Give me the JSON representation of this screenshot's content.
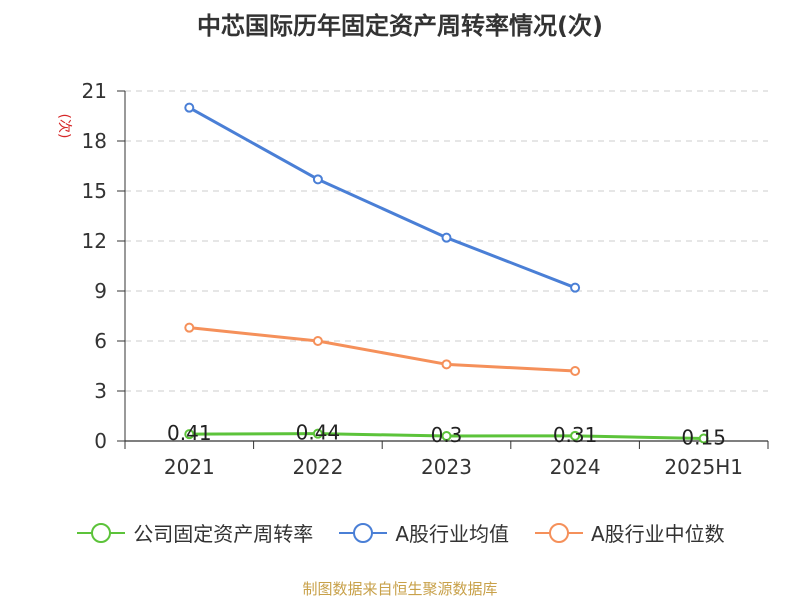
{
  "title": "中芯国际历年固定资产周转率情况(次)",
  "source": "制图数据来自恒生聚源数据库",
  "chart_data": {
    "type": "line",
    "title": "中芯国际历年固定资产周转率情况(次)",
    "ylabel": "(次)",
    "xlabel": "",
    "categories": [
      "2021",
      "2022",
      "2023",
      "2024",
      "2025H1"
    ],
    "ylim": [
      0,
      21
    ],
    "yticks": [
      0,
      3,
      6,
      9,
      12,
      15,
      18,
      21
    ],
    "grid": "horizontal dashed",
    "legend_position": "bottom",
    "series": [
      {
        "name": "公司固定资产周转率",
        "color": "#5cc33a",
        "values": [
          0.41,
          0.44,
          0.3,
          0.31,
          0.15
        ],
        "labels": [
          "0.41",
          "0.44",
          "0.3",
          "0.31",
          "0.15"
        ]
      },
      {
        "name": "A股行业均值",
        "color": "#4a7fd6",
        "values": [
          20.0,
          15.7,
          12.2,
          9.2,
          null
        ]
      },
      {
        "name": "A股行业中位数",
        "color": "#f5905a",
        "values": [
          6.8,
          6.0,
          4.6,
          4.2,
          null
        ]
      }
    ]
  }
}
